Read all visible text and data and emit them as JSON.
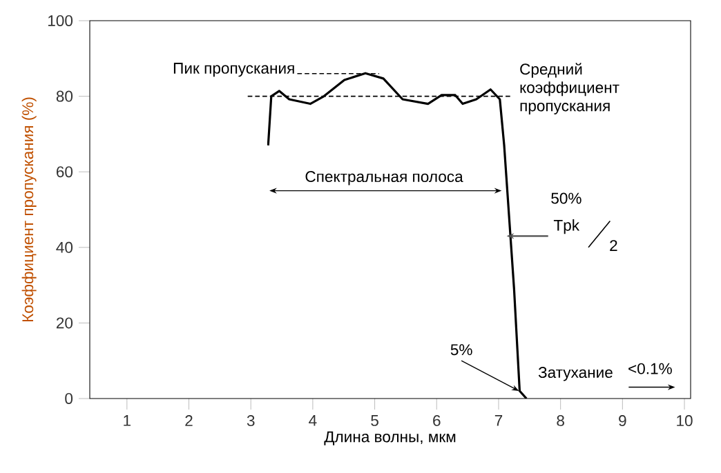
{
  "chart_data": {
    "type": "line",
    "xlabel": "Длина волны, мкм",
    "ylabel": "Коэффициент пропускания (%)",
    "xlim": [
      0.4,
      10.1
    ],
    "ylim": [
      0,
      100
    ],
    "xticks": [
      1,
      2,
      3,
      4,
      5,
      6,
      7,
      8,
      9,
      10
    ],
    "yticks": [
      0,
      20,
      40,
      60,
      80,
      100
    ],
    "grid": false,
    "marker": "none",
    "series": [
      {
        "color": "#000000",
        "line_style": "solid",
        "x": [
          3.28,
          3.33,
          3.46,
          3.62,
          3.96,
          4.18,
          4.51,
          4.85,
          5.14,
          5.45,
          5.86,
          6.08,
          6.3,
          6.42,
          6.64,
          6.87,
          7.02,
          7.09,
          7.25,
          7.34,
          7.45
        ],
        "values": [
          67,
          80,
          81.4,
          79.2,
          78,
          80,
          84.3,
          86.1,
          84.7,
          79.2,
          78,
          80.3,
          80.3,
          78,
          79.2,
          81.8,
          79.2,
          67,
          29,
          2,
          0
        ]
      },
      {
        "color": "#000000",
        "line_style": "dashed",
        "x": [
          3.75,
          5.07
        ],
        "values": [
          86,
          86
        ]
      },
      {
        "color": "#000000",
        "line_style": "dashed",
        "x": [
          2.95,
          7.2
        ],
        "values": [
          80,
          80
        ]
      }
    ],
    "annotations": [
      {
        "text": "Пик пропускания",
        "x": 3.75,
        "y": 86
      },
      {
        "text": "Средний коэффициент пропускания",
        "x": 7.2,
        "y": 80
      },
      "Спектральная полоса",
      "50%",
      {
        "text": "Tpk",
        "x": 7.13,
        "y": 43
      },
      "2",
      {
        "text": "5%",
        "x": 7.33,
        "y": 2
      },
      "Затухание",
      "<0.1%"
    ]
  }
}
